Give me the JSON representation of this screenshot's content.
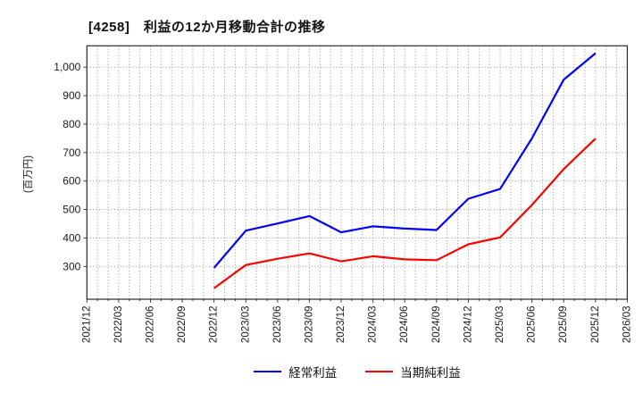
{
  "page": {
    "background": "#ffffff"
  },
  "chart_data": {
    "type": "line",
    "title": "[4258]　利益の12か月移動合計の推移",
    "ylabel": "(百万円)",
    "categories": [
      "2021/12",
      "2022/03",
      "2022/06",
      "2022/09",
      "2022/12",
      "2023/03",
      "2023/06",
      "2023/09",
      "2023/12",
      "2024/03",
      "2024/06",
      "2024/09",
      "2024/12",
      "2025/03",
      "2025/06",
      "2025/09",
      "2025/12",
      "2026/03"
    ],
    "yticks": [
      300,
      400,
      500,
      600,
      700,
      800,
      900,
      1000
    ],
    "ylim": [
      185,
      1075
    ],
    "grid": true,
    "minor_vertical_divisions_per_interval": 3,
    "legend_position": "bottom-center",
    "series": [
      {
        "name": "経常利益",
        "color": "#0000ff",
        "values": [
          null,
          null,
          null,
          null,
          295,
          426,
          451,
          477,
          420,
          441,
          433,
          428,
          538,
          572,
          750,
          956,
          1049,
          null
        ]
      },
      {
        "name": "当期純利益",
        "color": "#ff0000",
        "values": [
          null,
          null,
          null,
          null,
          224,
          305,
          327,
          346,
          318,
          336,
          325,
          322,
          378,
          402,
          516,
          642,
          749,
          null
        ]
      }
    ],
    "style": {
      "grid_color": "#9a9a9a",
      "axis_color": "#2b2b2b",
      "text_color": "#1a1a1a"
    }
  }
}
